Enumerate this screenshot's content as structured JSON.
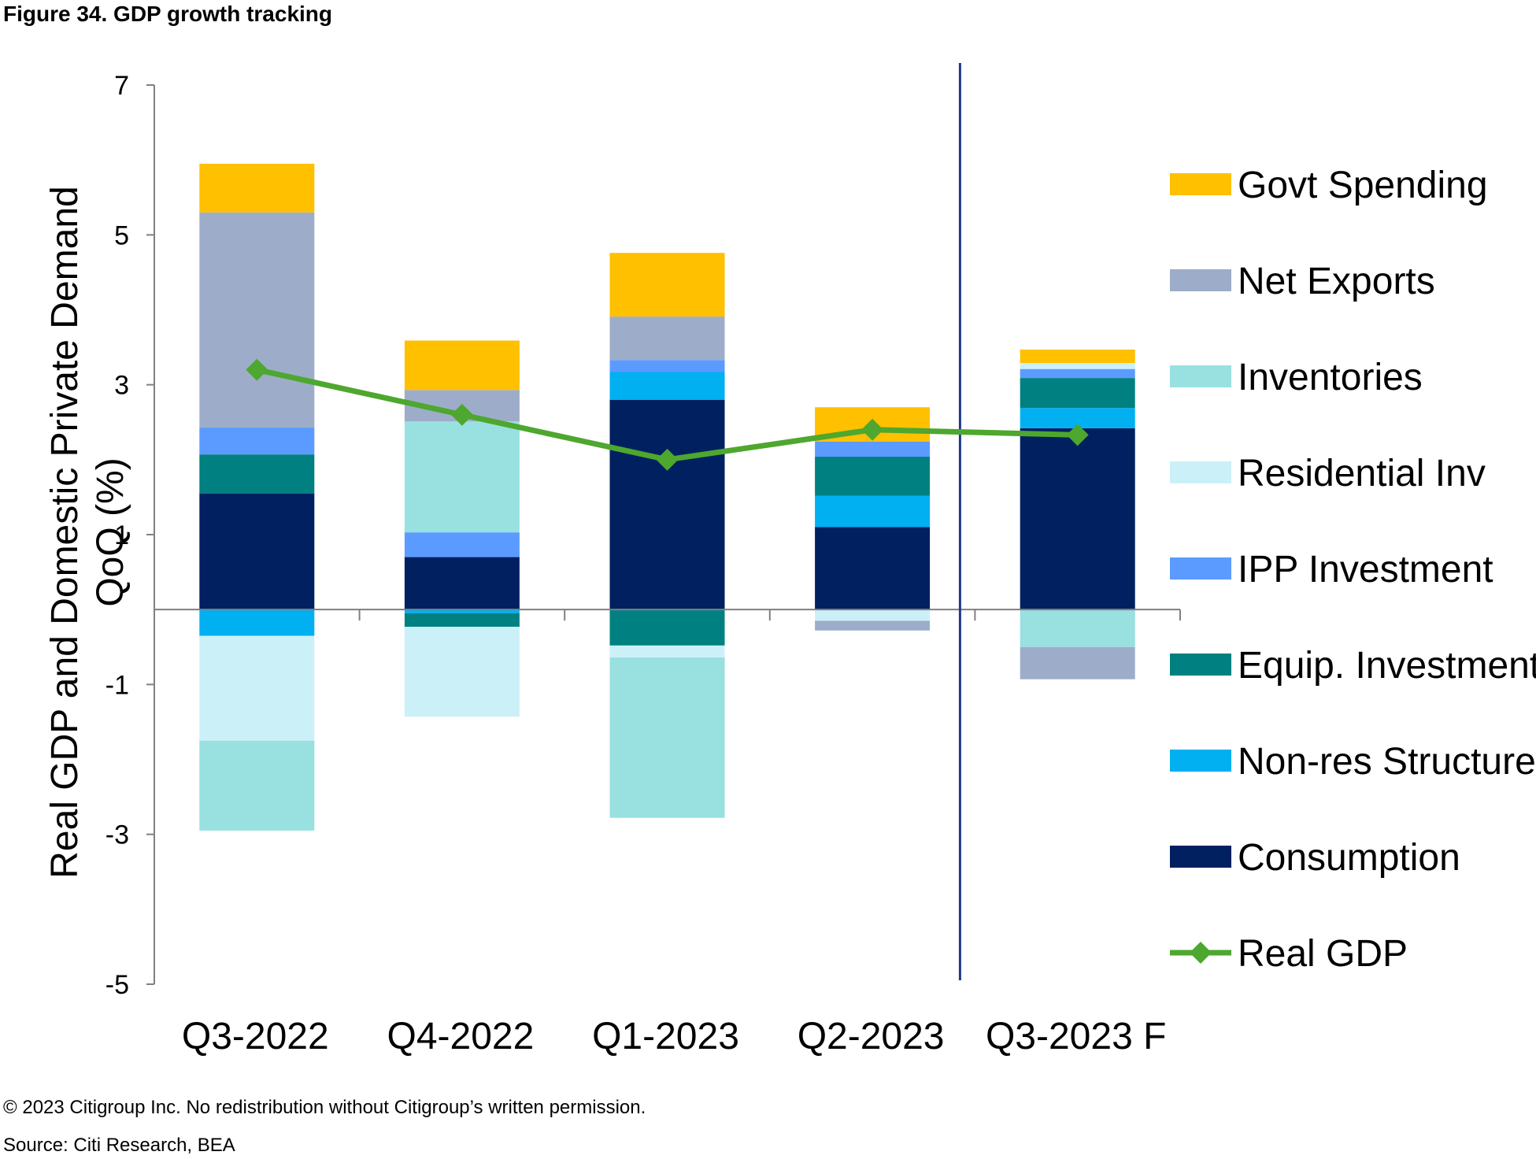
{
  "title": "Figure 34. GDP growth tracking",
  "footer": {
    "copyright": "© 2023 Citigroup Inc. No redistribution without Citigroup’s written permission.",
    "source": "Source: Citi Research, BEA"
  },
  "chart_data": {
    "type": "bar",
    "stacked": true,
    "ylabel": "Real GDP and Domestic Private Demand QoQ (%)",
    "ylabel_lines": [
      "Real GDP and Domestic Private Demand",
      "QoQ (%)"
    ],
    "ylim": [
      -5,
      7
    ],
    "yticks": [
      -5,
      -3,
      -1,
      1,
      3,
      5,
      7
    ],
    "categories": [
      "Q3-2022",
      "Q4-2022",
      "Q1-2023",
      "Q2-2023",
      "Q3-2023 F"
    ],
    "forecast_divider_after": "Q2-2023",
    "legend_position": "right",
    "series": [
      {
        "name": "Consumption",
        "color": "#002060",
        "values": [
          1.55,
          0.7,
          2.8,
          1.1,
          2.42
        ]
      },
      {
        "name": "Non-res Structures",
        "color": "#00B0F0",
        "values": [
          -0.35,
          -0.05,
          0.37,
          0.42,
          0.27
        ]
      },
      {
        "name": "Equip. Investment",
        "color": "#008080",
        "values": [
          0.52,
          -0.18,
          -0.48,
          0.52,
          0.4
        ]
      },
      {
        "name": "IPP Investment",
        "color": "#5B9BFF",
        "values": [
          0.36,
          0.33,
          0.16,
          0.2,
          0.12
        ]
      },
      {
        "name": "Residential Inv",
        "color": "#CCF0F8",
        "values": [
          -1.4,
          -1.2,
          -0.16,
          -0.15,
          0.08
        ]
      },
      {
        "name": "Inventories",
        "color": "#99E0E0",
        "values": [
          -1.2,
          1.48,
          -2.14,
          0.0,
          -0.5
        ]
      },
      {
        "name": "Net Exports",
        "color": "#9DADC9",
        "values": [
          2.87,
          0.42,
          0.58,
          -0.13,
          -0.43
        ]
      },
      {
        "name": "Govt Spending",
        "color": "#FFC000",
        "values": [
          0.65,
          0.66,
          0.85,
          0.46,
          0.18
        ]
      }
    ],
    "line": {
      "name": "Real GDP",
      "color": "#4EA72E",
      "values": [
        3.2,
        2.6,
        2.0,
        2.4,
        2.33
      ]
    },
    "legend_order": [
      "Govt Spending",
      "Net Exports",
      "Inventories",
      "Residential Inv",
      "IPP Investment",
      "Equip. Investment",
      "Non-res Structures",
      "Consumption",
      "Real GDP"
    ]
  }
}
